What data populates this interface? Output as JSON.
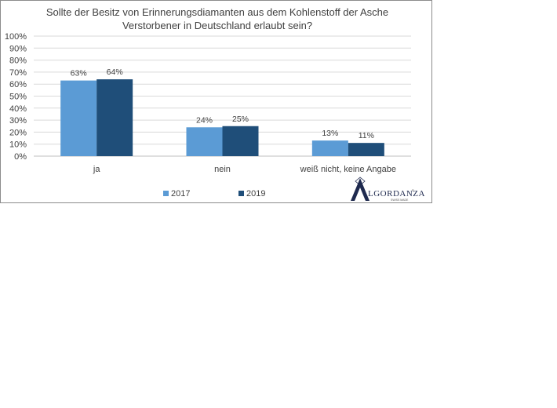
{
  "chart_data": {
    "type": "bar",
    "title": [
      "Sollte der Besitz von Erinnerungsdiamanten aus dem Kohlenstoff der Asche",
      "Verstorbener in Deutschland erlaubt sein?"
    ],
    "categories": [
      "ja",
      "nein",
      "weiß nicht, keine Angabe"
    ],
    "series": [
      {
        "name": "2017",
        "values": [
          63,
          24,
          13
        ],
        "labels": [
          "63%",
          "24%",
          "13%"
        ],
        "color": "#5b9bd5"
      },
      {
        "name": "2019",
        "values": [
          64,
          25,
          11
        ],
        "labels": [
          "64%",
          "25%",
          "11%"
        ],
        "color": "#1f4e79"
      }
    ],
    "ylim": [
      0,
      100
    ],
    "y_ticks": [
      "0%",
      "10%",
      "20%",
      "30%",
      "40%",
      "50%",
      "60%",
      "70%",
      "80%",
      "90%",
      "100%"
    ],
    "xlabel": "",
    "ylabel": "",
    "grid": true,
    "gridColor": "#d9d9d9",
    "legend": "bottom"
  },
  "logo": {
    "text": "LGORDANZA",
    "mark": "A",
    "trademark": "®",
    "tagline": "SWISS MADE"
  }
}
